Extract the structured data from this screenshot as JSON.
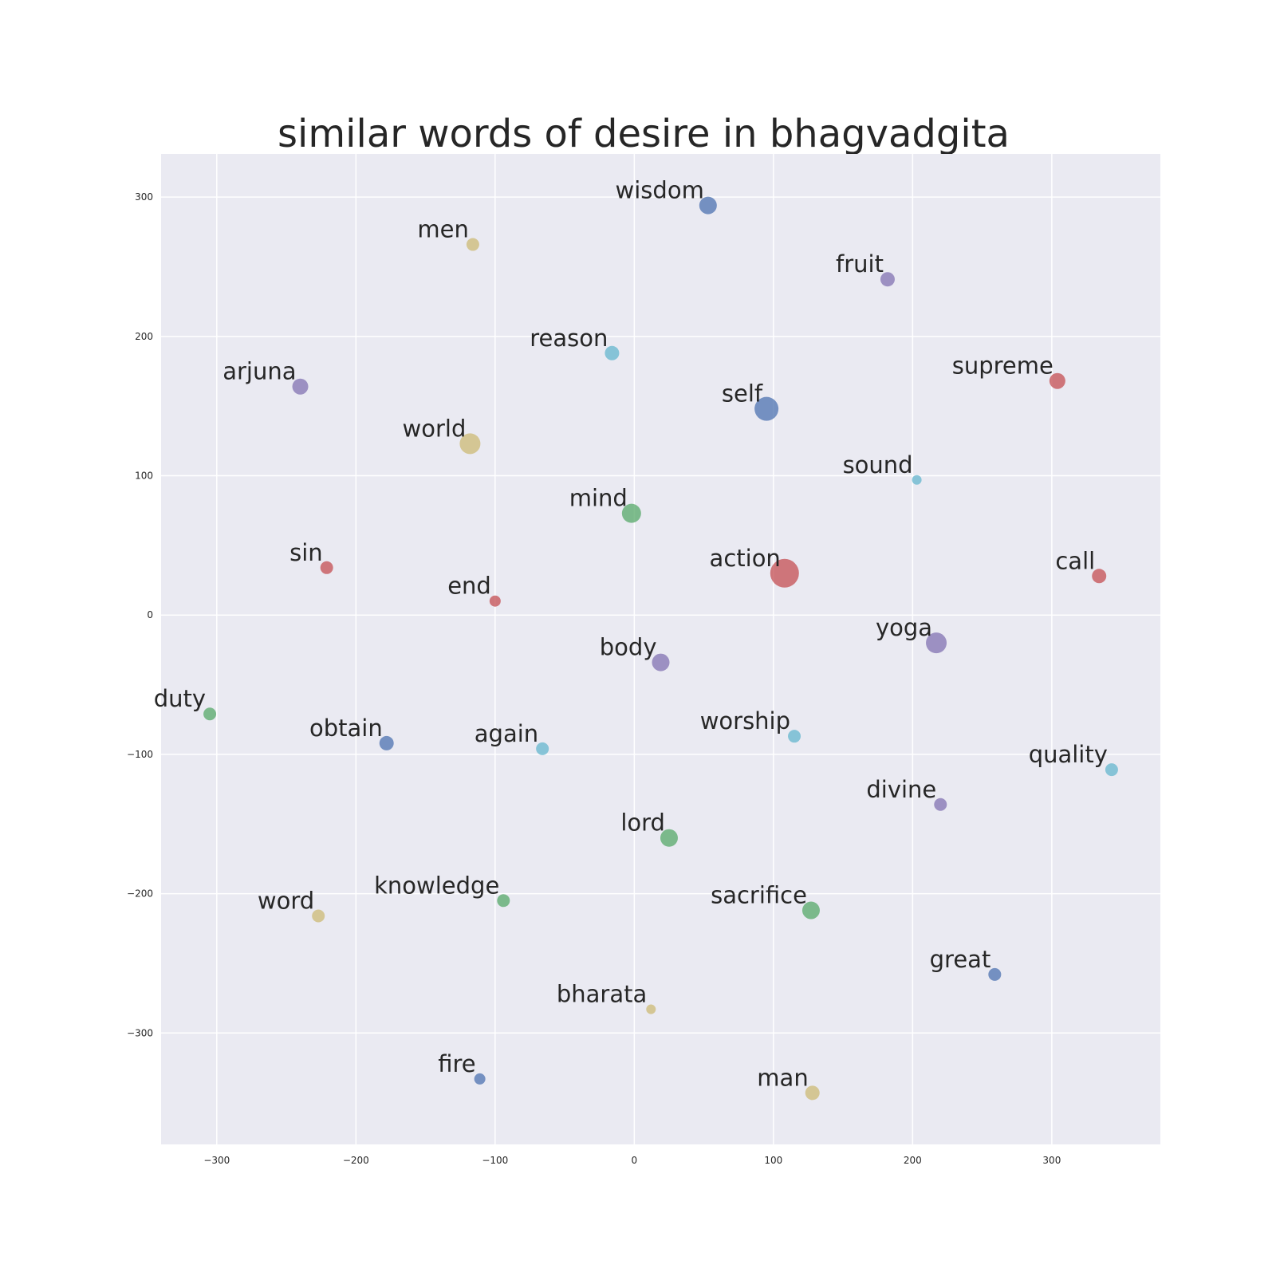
{
  "chart_data": {
    "type": "scatter",
    "title": "similar words of desire in bhagvadgita",
    "xlabel": "",
    "ylabel": "",
    "xlim": [
      -340,
      378
    ],
    "ylim": [
      -380,
      331
    ],
    "grid": true,
    "x_ticks": [
      -300,
      -200,
      -100,
      0,
      100,
      200,
      300
    ],
    "y_ticks": [
      300,
      200,
      100,
      0,
      -100,
      -200,
      -300
    ],
    "x_tick_labels": [
      "−300",
      "−200",
      "−100",
      "0",
      "100",
      "200",
      "300"
    ],
    "y_tick_labels": [
      "300",
      "200",
      "100",
      "0",
      "−100",
      "−200",
      "−300"
    ],
    "colors": {
      "blue": "#4c72b0",
      "green": "#55a868",
      "red": "#c44e52",
      "purple": "#8172b2",
      "yellow": "#ccb974",
      "cyan": "#64b5cd",
      "background": "#eaeaf2",
      "grid": "#ffffff"
    },
    "points": [
      {
        "label": "wisdom",
        "x": 53,
        "y": 294,
        "size": 11,
        "color": "blue"
      },
      {
        "label": "men",
        "x": -116,
        "y": 266,
        "size": 8,
        "color": "yellow"
      },
      {
        "label": "fruit",
        "x": 182,
        "y": 241,
        "size": 9,
        "color": "purple"
      },
      {
        "label": "reason",
        "x": -16,
        "y": 188,
        "size": 9,
        "color": "cyan"
      },
      {
        "label": "arjuna",
        "x": -240,
        "y": 164,
        "size": 10,
        "color": "purple"
      },
      {
        "label": "supreme",
        "x": 304,
        "y": 168,
        "size": 10,
        "color": "red"
      },
      {
        "label": "self",
        "x": 95,
        "y": 148,
        "size": 15,
        "color": "blue"
      },
      {
        "label": "world",
        "x": -118,
        "y": 123,
        "size": 13,
        "color": "yellow"
      },
      {
        "label": "sound",
        "x": 203,
        "y": 97,
        "size": 6,
        "color": "cyan"
      },
      {
        "label": "mind",
        "x": -2,
        "y": 73,
        "size": 12,
        "color": "green"
      },
      {
        "label": "sin",
        "x": -221,
        "y": 34,
        "size": 8,
        "color": "red"
      },
      {
        "label": "action",
        "x": 108,
        "y": 30,
        "size": 18,
        "color": "red"
      },
      {
        "label": "call",
        "x": 334,
        "y": 28,
        "size": 9,
        "color": "red"
      },
      {
        "label": "end",
        "x": -100,
        "y": 10,
        "size": 7,
        "color": "red"
      },
      {
        "label": "yoga",
        "x": 217,
        "y": -20,
        "size": 13,
        "color": "purple"
      },
      {
        "label": "body",
        "x": 19,
        "y": -34,
        "size": 11,
        "color": "purple"
      },
      {
        "label": "duty",
        "x": -305,
        "y": -71,
        "size": 8,
        "color": "green"
      },
      {
        "label": "obtain",
        "x": -178,
        "y": -92,
        "size": 9,
        "color": "blue"
      },
      {
        "label": "again",
        "x": -66,
        "y": -96,
        "size": 8,
        "color": "cyan"
      },
      {
        "label": "worship",
        "x": 115,
        "y": -87,
        "size": 8,
        "color": "cyan"
      },
      {
        "label": "quality",
        "x": 343,
        "y": -111,
        "size": 8,
        "color": "cyan"
      },
      {
        "label": "divine",
        "x": 220,
        "y": -136,
        "size": 8,
        "color": "purple"
      },
      {
        "label": "lord",
        "x": 25,
        "y": -160,
        "size": 11,
        "color": "green"
      },
      {
        "label": "word",
        "x": -227,
        "y": -216,
        "size": 8,
        "color": "yellow"
      },
      {
        "label": "knowledge",
        "x": -94,
        "y": -205,
        "size": 8,
        "color": "green"
      },
      {
        "label": "sacrifice",
        "x": 127,
        "y": -212,
        "size": 11,
        "color": "green"
      },
      {
        "label": "great",
        "x": 259,
        "y": -258,
        "size": 8,
        "color": "blue"
      },
      {
        "label": "bharata",
        "x": 12,
        "y": -283,
        "size": 6,
        "color": "yellow"
      },
      {
        "label": "fire",
        "x": -111,
        "y": -333,
        "size": 7,
        "color": "blue"
      },
      {
        "label": "man",
        "x": 128,
        "y": -343,
        "size": 9,
        "color": "yellow"
      }
    ]
  }
}
